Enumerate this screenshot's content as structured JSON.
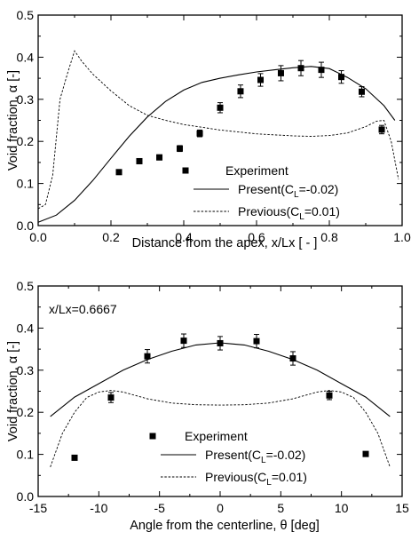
{
  "chart_data": [
    {
      "type": "line",
      "xlabel": "Distance from the apex, x/Lx [ - ]",
      "ylabel": "Void fraction, α [-]",
      "xlim": [
        0.0,
        1.0
      ],
      "ylim": [
        0.0,
        0.5
      ],
      "xticks": [
        0.0,
        0.2,
        0.4,
        0.6,
        0.8,
        1.0
      ],
      "xtick_labels": [
        "0.0",
        "0.2",
        "0.4",
        "0.6",
        "0.8",
        "1.0"
      ],
      "yticks": [
        0.0,
        0.1,
        0.2,
        0.3,
        0.4,
        0.5
      ],
      "ytick_labels": [
        "0.0",
        "0.1",
        "0.2",
        "0.3",
        "0.4",
        "0.5"
      ],
      "legend_position": "bottom-right",
      "annotation": "",
      "experiment": {
        "name": "Experiment",
        "x": [
          0.222,
          0.278,
          0.333,
          0.389,
          0.444,
          0.5,
          0.556,
          0.611,
          0.667,
          0.722,
          0.778,
          0.833,
          0.889,
          0.944
        ],
        "y": [
          0.127,
          0.153,
          0.162,
          0.183,
          0.219,
          0.28,
          0.319,
          0.346,
          0.362,
          0.374,
          0.37,
          0.353,
          0.318,
          0.228
        ],
        "err": [
          0.0,
          0.0,
          0.006,
          0.007,
          0.008,
          0.012,
          0.015,
          0.015,
          0.018,
          0.018,
          0.018,
          0.015,
          0.012,
          0.01
        ]
      },
      "series": [
        {
          "name": "Present(C_L=-0.02)",
          "style": "solid",
          "x": [
            0.0,
            0.05,
            0.1,
            0.15,
            0.2,
            0.25,
            0.3,
            0.35,
            0.4,
            0.45,
            0.5,
            0.55,
            0.6,
            0.65,
            0.7,
            0.75,
            0.8,
            0.85,
            0.9,
            0.95,
            0.98
          ],
          "y": [
            0.008,
            0.025,
            0.06,
            0.107,
            0.16,
            0.212,
            0.258,
            0.295,
            0.322,
            0.34,
            0.35,
            0.358,
            0.365,
            0.37,
            0.375,
            0.378,
            0.373,
            0.352,
            0.325,
            0.285,
            0.25
          ]
        },
        {
          "name": "Previous(C_L=0.01)",
          "style": "dashed",
          "x": [
            0.0,
            0.02,
            0.04,
            0.06,
            0.08,
            0.1,
            0.12,
            0.15,
            0.2,
            0.25,
            0.3,
            0.35,
            0.4,
            0.5,
            0.6,
            0.7,
            0.75,
            0.8,
            0.85,
            0.9,
            0.93,
            0.95,
            0.97,
            0.99
          ],
          "y": [
            0.04,
            0.05,
            0.12,
            0.3,
            0.36,
            0.415,
            0.39,
            0.36,
            0.32,
            0.285,
            0.262,
            0.25,
            0.24,
            0.227,
            0.218,
            0.213,
            0.212,
            0.214,
            0.22,
            0.235,
            0.248,
            0.25,
            0.2,
            0.11
          ]
        }
      ]
    },
    {
      "type": "line",
      "xlabel": "Angle from the centerline, θ [deg]",
      "ylabel": "Void fraction, α [-]",
      "xlim": [
        -15,
        15
      ],
      "ylim": [
        0.0,
        0.5
      ],
      "xticks": [
        -15,
        -10,
        -5,
        0,
        5,
        10,
        15
      ],
      "xtick_labels": [
        "-15",
        "-10",
        "-5",
        "0",
        "5",
        "10",
        "15"
      ],
      "yticks": [
        0.0,
        0.1,
        0.2,
        0.3,
        0.4,
        0.5
      ],
      "ytick_labels": [
        "0.0",
        "0.1",
        "0.2",
        "0.3",
        "0.4",
        "0.5"
      ],
      "legend_position": "bottom-center",
      "annotation": "x/Lx=0.6667",
      "experiment": {
        "name": "Experiment",
        "x": [
          -12,
          -9,
          -6,
          -3,
          0,
          3,
          6,
          9,
          12
        ],
        "y": [
          0.092,
          0.235,
          0.333,
          0.37,
          0.364,
          0.369,
          0.328,
          0.24,
          0.101
        ],
        "err": [
          0.0,
          0.012,
          0.016,
          0.016,
          0.016,
          0.016,
          0.016,
          0.01,
          0.0
        ]
      },
      "series": [
        {
          "name": "Present(C_L=-0.02)",
          "style": "solid",
          "x": [
            -14,
            -12,
            -10,
            -8,
            -6,
            -4,
            -2,
            0,
            2,
            4,
            6,
            8,
            10,
            12,
            14
          ],
          "y": [
            0.19,
            0.236,
            0.268,
            0.3,
            0.325,
            0.345,
            0.36,
            0.365,
            0.36,
            0.345,
            0.325,
            0.3,
            0.268,
            0.236,
            0.19
          ]
        },
        {
          "name": "Previous(C_L=0.01)",
          "style": "dashed",
          "x": [
            -14,
            -13,
            -12,
            -11,
            -10,
            -9,
            -8,
            -6,
            -4,
            -2,
            0,
            2,
            4,
            6,
            8,
            9,
            10,
            11,
            12,
            13,
            14
          ],
          "y": [
            0.07,
            0.15,
            0.2,
            0.235,
            0.248,
            0.252,
            0.248,
            0.232,
            0.222,
            0.218,
            0.217,
            0.218,
            0.222,
            0.232,
            0.248,
            0.252,
            0.248,
            0.235,
            0.2,
            0.15,
            0.07
          ]
        }
      ]
    }
  ]
}
